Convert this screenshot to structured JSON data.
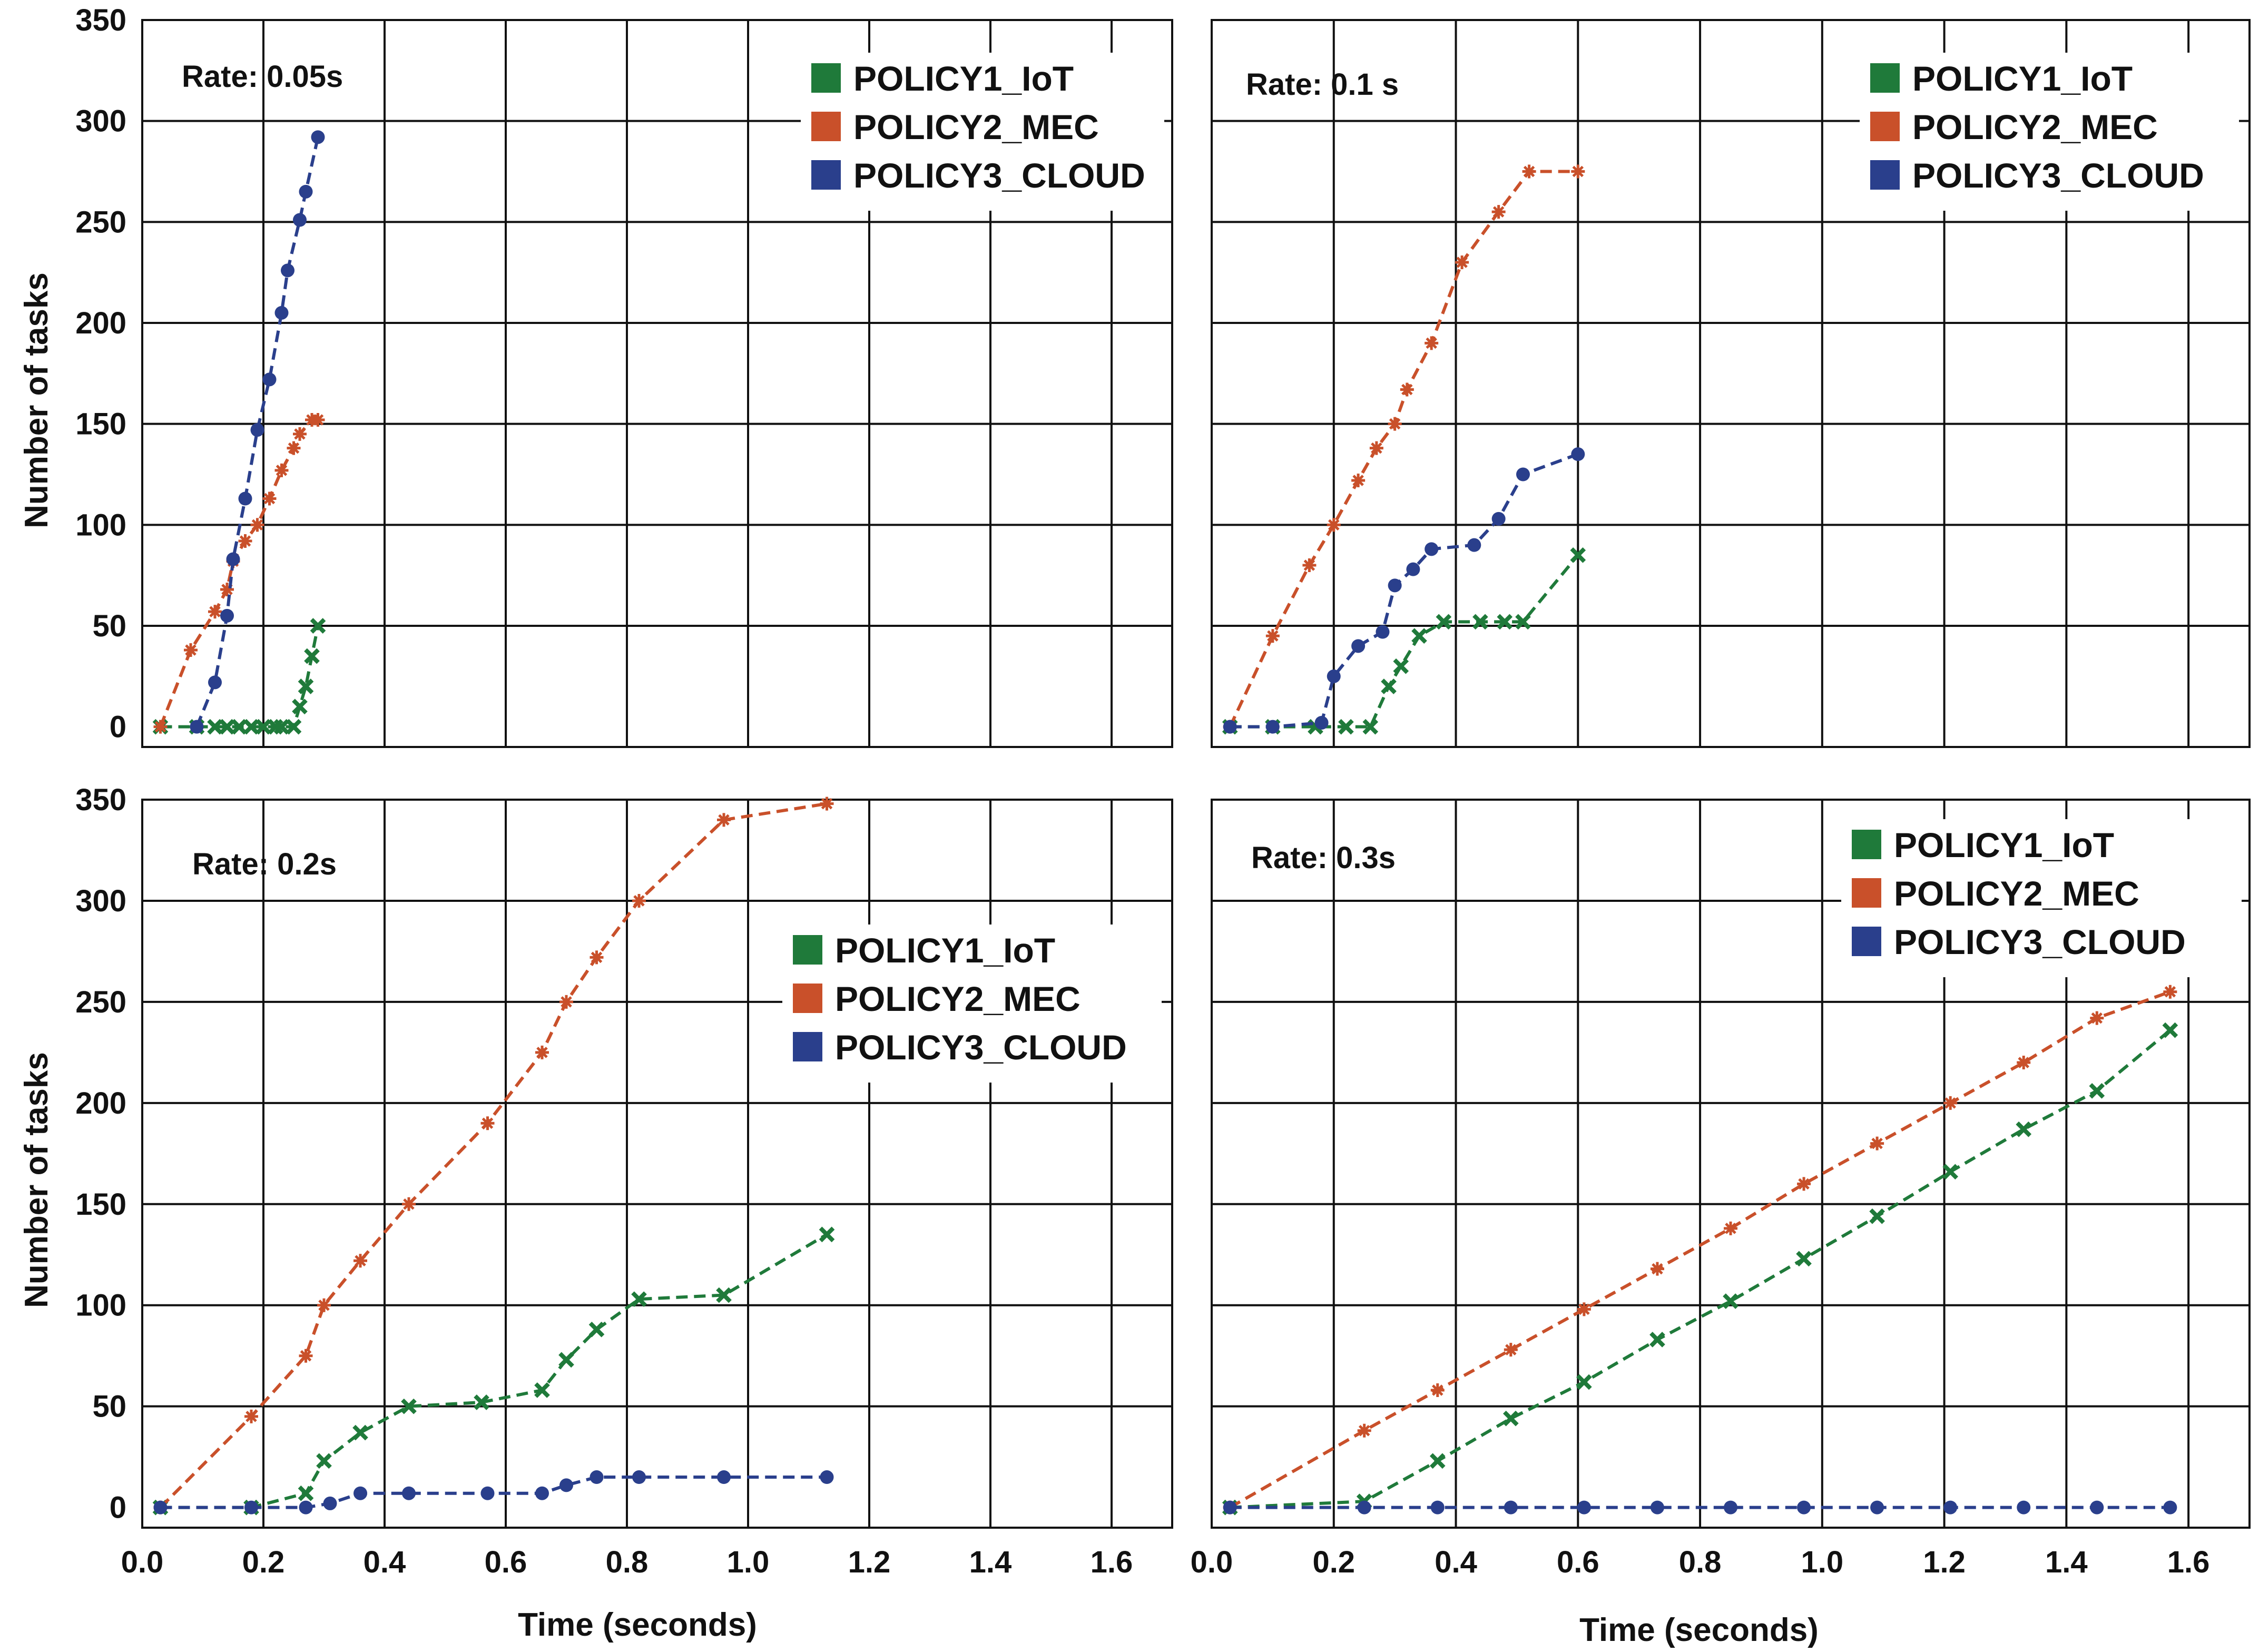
{
  "figure": {
    "ylabel": "Number of tasks",
    "xlabel": "Time (seconds)",
    "colors": {
      "POLICY1_IoT": "#1f7a3a",
      "POLICY2_MEC": "#c9502a",
      "POLICY3_CLOUD": "#2a3f8c",
      "grid": "#111111"
    }
  },
  "chart_data": [
    {
      "type": "line",
      "title": "Rate: 0.05s",
      "xlabel": "",
      "ylabel": "Number of tasks",
      "xlim": [
        0,
        1.7
      ],
      "ylim": [
        -10,
        350
      ],
      "xticks": [],
      "yticks": [
        0,
        50,
        100,
        150,
        200,
        250,
        300,
        350
      ],
      "ytick_labels": [
        "0",
        "50",
        "100",
        "150",
        "200",
        "250",
        "300",
        "350"
      ],
      "legend_position": "top-right",
      "series": [
        {
          "name": "POLICY1_IoT",
          "marker": "x",
          "x": [
            0.03,
            0.09,
            0.12,
            0.14,
            0.16,
            0.18,
            0.2,
            0.22,
            0.23,
            0.25,
            0.26,
            0.27,
            0.28,
            0.29
          ],
          "y": [
            0,
            0,
            0,
            0,
            0,
            0,
            0,
            0,
            0,
            0,
            10,
            20,
            35,
            50
          ]
        },
        {
          "name": "POLICY2_MEC",
          "marker": "star",
          "x": [
            0.03,
            0.08,
            0.12,
            0.14,
            0.15,
            0.17,
            0.19,
            0.21,
            0.23,
            0.25,
            0.26,
            0.28,
            0.29
          ],
          "y": [
            0,
            38,
            57,
            68,
            82,
            92,
            100,
            113,
            127,
            138,
            145,
            152,
            152
          ]
        },
        {
          "name": "POLICY3_CLOUD",
          "marker": "circle",
          "x": [
            0.09,
            0.12,
            0.14,
            0.15,
            0.17,
            0.19,
            0.21,
            0.23,
            0.24,
            0.26,
            0.27,
            0.29
          ],
          "y": [
            0,
            22,
            55,
            83,
            113,
            147,
            172,
            205,
            226,
            251,
            265,
            292
          ]
        }
      ]
    },
    {
      "type": "line",
      "title": "Rate: 0.1 s",
      "xlabel": "",
      "ylabel": "",
      "xlim": [
        0,
        1.7
      ],
      "ylim": [
        -10,
        350
      ],
      "xticks": [],
      "yticks": [],
      "legend_position": "top-right",
      "series": [
        {
          "name": "POLICY1_IoT",
          "marker": "x",
          "x": [
            0.03,
            0.1,
            0.17,
            0.22,
            0.26,
            0.29,
            0.31,
            0.34,
            0.38,
            0.44,
            0.48,
            0.51,
            0.6
          ],
          "y": [
            0,
            0,
            0,
            0,
            0,
            20,
            30,
            45,
            52,
            52,
            52,
            52,
            85
          ]
        },
        {
          "name": "POLICY2_MEC",
          "marker": "star",
          "x": [
            0.03,
            0.1,
            0.16,
            0.2,
            0.24,
            0.27,
            0.3,
            0.32,
            0.36,
            0.41,
            0.47,
            0.52,
            0.6
          ],
          "y": [
            0,
            45,
            80,
            100,
            122,
            138,
            150,
            167,
            190,
            230,
            255,
            275,
            275
          ]
        },
        {
          "name": "POLICY3_CLOUD",
          "marker": "circle",
          "x": [
            0.03,
            0.1,
            0.18,
            0.2,
            0.24,
            0.28,
            0.3,
            0.33,
            0.36,
            0.43,
            0.47,
            0.51,
            0.6
          ],
          "y": [
            0,
            0,
            2,
            25,
            40,
            47,
            70,
            78,
            88,
            90,
            103,
            125,
            135
          ]
        }
      ]
    },
    {
      "type": "line",
      "title": "Rate: 0.2s",
      "xlabel": "Time (seconds)",
      "ylabel": "Number of tasks",
      "xlim": [
        0,
        1.7
      ],
      "ylim": [
        -10,
        350
      ],
      "xticks": [
        0.0,
        0.2,
        0.4,
        0.6,
        0.8,
        1.0,
        1.2,
        1.4,
        1.6
      ],
      "xtick_labels": [
        "0.0",
        "0.2",
        "0.4",
        "0.6",
        "0.8",
        "1.0",
        "1.2",
        "1.4",
        "1.6"
      ],
      "yticks": [
        0,
        50,
        100,
        150,
        200,
        250,
        300,
        350
      ],
      "ytick_labels": [
        "0",
        "50",
        "100",
        "150",
        "200",
        "250",
        "300",
        "350"
      ],
      "legend_position": "center-right",
      "series": [
        {
          "name": "POLICY1_IoT",
          "marker": "x",
          "x": [
            0.03,
            0.18,
            0.27,
            0.3,
            0.36,
            0.44,
            0.56,
            0.66,
            0.7,
            0.75,
            0.82,
            0.96,
            1.13
          ],
          "y": [
            0,
            0,
            7,
            23,
            37,
            50,
            52,
            58,
            73,
            88,
            103,
            105,
            135
          ]
        },
        {
          "name": "POLICY2_MEC",
          "marker": "star",
          "x": [
            0.03,
            0.18,
            0.27,
            0.3,
            0.36,
            0.44,
            0.57,
            0.66,
            0.7,
            0.75,
            0.82,
            0.96,
            1.13
          ],
          "y": [
            0,
            45,
            75,
            100,
            122,
            150,
            190,
            225,
            250,
            272,
            300,
            340,
            348
          ]
        },
        {
          "name": "POLICY3_CLOUD",
          "marker": "circle",
          "x": [
            0.03,
            0.18,
            0.27,
            0.31,
            0.36,
            0.44,
            0.57,
            0.66,
            0.7,
            0.75,
            0.82,
            0.96,
            1.13
          ],
          "y": [
            0,
            0,
            0,
            2,
            7,
            7,
            7,
            7,
            11,
            15,
            15,
            15,
            15
          ]
        }
      ]
    },
    {
      "type": "line",
      "title": "Rate: 0.3s",
      "xlabel": "Time (seconds)",
      "ylabel": "",
      "xlim": [
        0,
        1.7
      ],
      "ylim": [
        -10,
        350
      ],
      "xticks": [
        0.0,
        0.2,
        0.4,
        0.6,
        0.8,
        1.0,
        1.2,
        1.4,
        1.6
      ],
      "xtick_labels": [
        "0.0",
        "0.2",
        "0.4",
        "0.6",
        "0.8",
        "1.0",
        "1.2",
        "1.4",
        "1.6"
      ],
      "yticks": [],
      "legend_position": "top-right",
      "series": [
        {
          "name": "POLICY1_IoT",
          "marker": "x",
          "x": [
            0.03,
            0.25,
            0.37,
            0.49,
            0.61,
            0.73,
            0.85,
            0.97,
            1.09,
            1.21,
            1.33,
            1.45,
            1.57
          ],
          "y": [
            0,
            3,
            23,
            44,
            62,
            83,
            102,
            123,
            144,
            166,
            187,
            206,
            236
          ]
        },
        {
          "name": "POLICY2_MEC",
          "marker": "star",
          "x": [
            0.03,
            0.25,
            0.37,
            0.49,
            0.61,
            0.73,
            0.85,
            0.97,
            1.09,
            1.21,
            1.33,
            1.45,
            1.57
          ],
          "y": [
            0,
            38,
            58,
            78,
            98,
            118,
            138,
            160,
            180,
            200,
            220,
            242,
            255
          ]
        },
        {
          "name": "POLICY3_CLOUD",
          "marker": "circle",
          "x": [
            0.03,
            0.25,
            0.37,
            0.49,
            0.61,
            0.73,
            0.85,
            0.97,
            1.09,
            1.21,
            1.33,
            1.45,
            1.57
          ],
          "y": [
            0,
            0,
            0,
            0,
            0,
            0,
            0,
            0,
            0,
            0,
            0,
            0,
            0
          ]
        }
      ]
    }
  ]
}
